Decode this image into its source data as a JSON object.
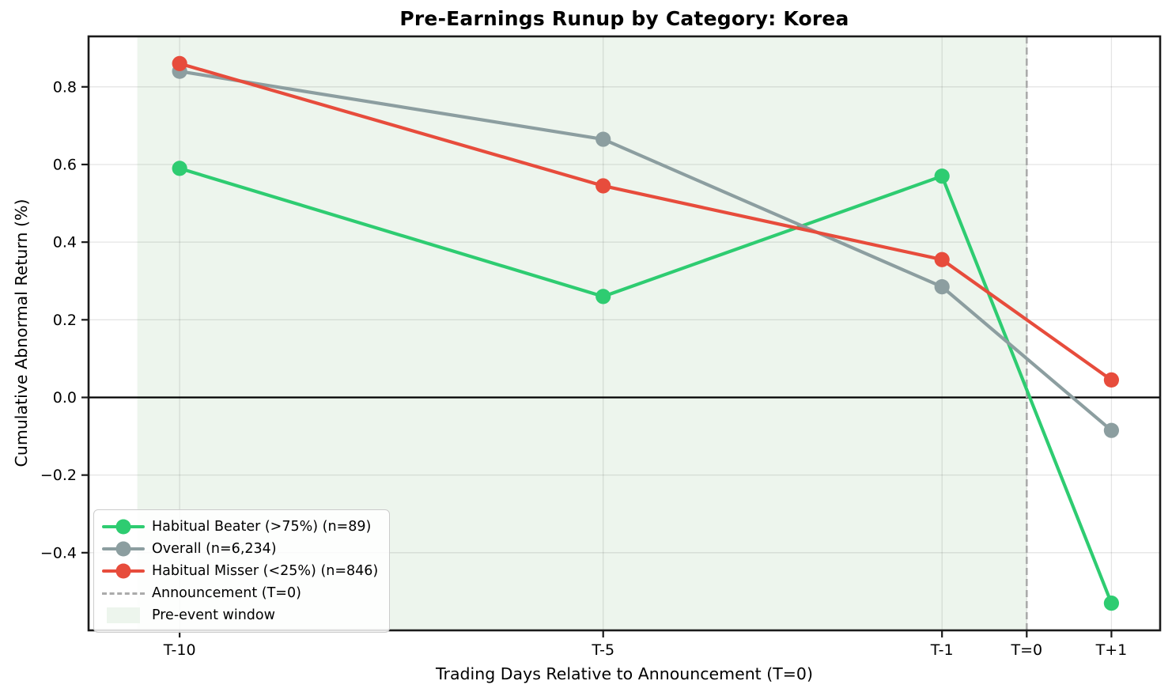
{
  "chart_data": {
    "type": "line",
    "title": "Pre-Earnings Runup by Category: Korea",
    "xlabel": "Trading Days Relative to Announcement (T=0)",
    "ylabel": "Cumulative Abnormal Return (%)",
    "x": [
      -10,
      -5,
      -1,
      1
    ],
    "x_tick_days": [
      -10,
      -5,
      -1,
      0,
      1
    ],
    "x_tick_labels": [
      "T-10",
      "T-5",
      "T-1",
      "T=0",
      "T+1"
    ],
    "y_ticks": [
      0.8,
      0.6,
      0.4,
      0.2,
      0.0,
      -0.2,
      -0.4
    ],
    "y_tick_labels": [
      "0.8",
      "0.6",
      "0.4",
      "0.2",
      "0.0",
      "−0.2",
      "−0.4"
    ],
    "xlim": [
      -11.075,
      1.575
    ],
    "ylim": [
      -0.6,
      0.93
    ],
    "grid": true,
    "grid_color": "rgba(0,0,0,0.10)",
    "legend_position": "lower left",
    "series": [
      {
        "name": "Habitual Beater (>75%) (n=89)",
        "color": "#2ecc71",
        "marker": "circle",
        "values": [
          0.59,
          0.26,
          0.57,
          -0.53
        ]
      },
      {
        "name": "Overall (n=6,234)",
        "color": "#8c9ea0",
        "marker": "circle",
        "values": [
          0.84,
          0.665,
          0.285,
          -0.085
        ]
      },
      {
        "name": "Habitual Misser (<25%) (n=846)",
        "color": "#e74c3c",
        "marker": "circle",
        "values": [
          0.86,
          0.545,
          0.355,
          0.045
        ]
      }
    ],
    "annotation_line": {
      "label": "Announcement (T=0)",
      "x": 0,
      "color": "#ababab",
      "style": "dashed"
    },
    "shaded_region": {
      "label": "Pre-event window",
      "from": -10.5,
      "to": 0,
      "color": "#edf5ed"
    },
    "zero_line": {
      "y": 0.0,
      "color": "#000000"
    },
    "axis_color": "#1a1a1a"
  }
}
